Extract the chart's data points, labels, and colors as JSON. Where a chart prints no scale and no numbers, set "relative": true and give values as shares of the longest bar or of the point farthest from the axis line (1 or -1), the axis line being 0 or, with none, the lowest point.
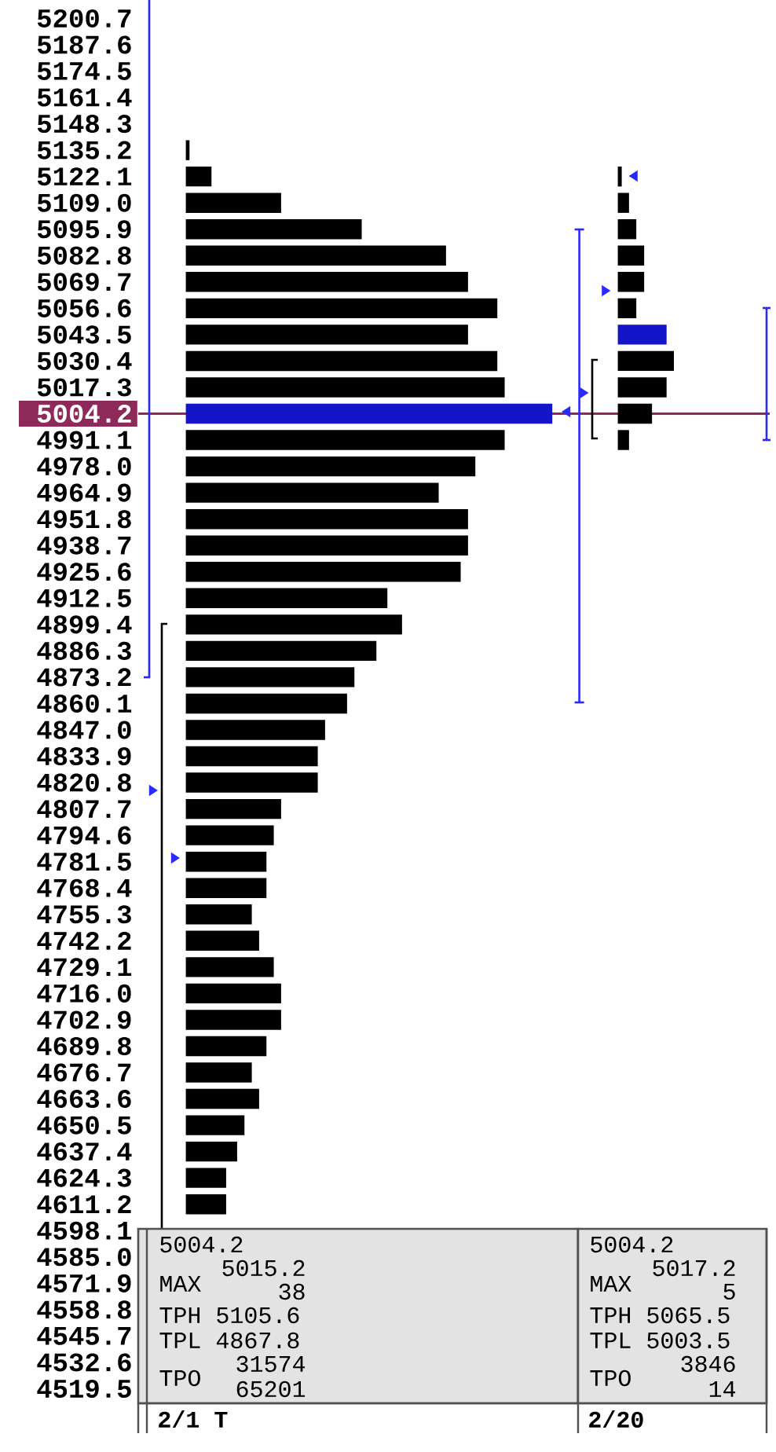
{
  "chart_data": [
    {
      "type": "bar",
      "orientation": "horizontal",
      "relative": true,
      "xlabel": "2/1 T",
      "categories": [
        "5200.7",
        "5187.6",
        "5174.5",
        "5161.4",
        "5148.3",
        "5135.2",
        "5122.1",
        "5109.0",
        "5095.9",
        "5082.8",
        "5069.7",
        "5056.6",
        "5043.5",
        "5030.4",
        "5017.3",
        "5004.2",
        "4991.1",
        "4978.0",
        "4964.9",
        "4951.8",
        "4938.7",
        "4925.6",
        "4912.5",
        "4899.4",
        "4886.3",
        "4873.2",
        "4860.1",
        "4847.0",
        "4833.9",
        "4820.8",
        "4807.7",
        "4794.6",
        "4781.5",
        "4768.4",
        "4755.3",
        "4742.2",
        "4729.1",
        "4716.0",
        "4702.9",
        "4689.8",
        "4676.7",
        "4663.6",
        "4650.5",
        "4637.4",
        "4624.3",
        "4611.2",
        "4598.1",
        "4585.0",
        "4571.9",
        "4558.8",
        "4545.7",
        "4532.6",
        "4519.5"
      ],
      "values": [
        null,
        null,
        null,
        null,
        null,
        0.01,
        0.07,
        0.26,
        0.48,
        0.71,
        0.77,
        0.85,
        0.77,
        0.85,
        0.87,
        1,
        0.87,
        0.79,
        0.69,
        0.77,
        0.77,
        0.75,
        0.55,
        0.59,
        0.52,
        0.46,
        0.44,
        0.38,
        0.36,
        0.36,
        0.26,
        0.24,
        0.22,
        0.22,
        0.18,
        0.2,
        0.24,
        0.26,
        0.26,
        0.22,
        0.18,
        0.2,
        0.16,
        0.14,
        0.11,
        0.11,
        null,
        null,
        null,
        null,
        null,
        null,
        null
      ],
      "colors": [
        null,
        null,
        null,
        null,
        null,
        "#000000",
        "#000000",
        "#000000",
        "#000000",
        "#000000",
        "#000000",
        "#000000",
        "#000000",
        "#000000",
        "#000000",
        "#1414c8",
        "#000000",
        "#000000",
        "#000000",
        "#000000",
        "#000000",
        "#000000",
        "#000000",
        "#000000",
        "#000000",
        "#000000",
        "#000000",
        "#000000",
        "#000000",
        "#000000",
        "#000000",
        "#000000",
        "#000000",
        "#000000",
        "#000000",
        "#000000",
        "#000000",
        "#000000",
        "#000000",
        "#000000",
        "#000000",
        "#000000",
        "#000000",
        "#000000",
        "#000000",
        "#000000",
        null,
        null,
        null,
        null,
        null,
        null,
        null
      ],
      "ref_lines": [
        {
          "axis": "y",
          "value": "5004.2",
          "color": "#8e2a5a"
        }
      ],
      "annotations": [
        "5004.2",
        "MAX",
        "5015.2",
        "38",
        "TPH 5105.6",
        "TPL 4867.8",
        "TPO",
        "31574",
        "65201"
      ]
    },
    {
      "type": "bar",
      "orientation": "horizontal",
      "relative": true,
      "xlabel": "2/20",
      "tick_labels": false,
      "categories": [
        "5200.7",
        "5187.6",
        "5174.5",
        "5161.4",
        "5148.3",
        "5135.2",
        "5122.1",
        "5109.0",
        "5095.9",
        "5082.8",
        "5069.7",
        "5056.6",
        "5043.5",
        "5030.4",
        "5017.3",
        "5004.2",
        "4991.1",
        "4978.0",
        "4964.9",
        "4951.8",
        "4938.7",
        "4925.6",
        "4912.5",
        "4899.4",
        "4886.3",
        "4873.2",
        "4860.1",
        "4847.0",
        "4833.9",
        "4820.8",
        "4807.7",
        "4794.6",
        "4781.5",
        "4768.4",
        "4755.3",
        "4742.2",
        "4729.1",
        "4716.0",
        "4702.9",
        "4689.8",
        "4676.7",
        "4663.6",
        "4650.5",
        "4637.4",
        "4624.3",
        "4611.2",
        "4598.1",
        "4585.0",
        "4571.9",
        "4558.8",
        "4545.7",
        "4532.6",
        "4519.5"
      ],
      "values": [
        null,
        null,
        null,
        null,
        null,
        null,
        0.07,
        0.2,
        0.33,
        0.47,
        0.47,
        0.33,
        0.87,
        1,
        0.87,
        0.61,
        0.2,
        null,
        null,
        null,
        null,
        null,
        null,
        null,
        null,
        null,
        null,
        null,
        null,
        null,
        null,
        null,
        null,
        null,
        null,
        null,
        null,
        null,
        null,
        null,
        null,
        null,
        null,
        null,
        null,
        null,
        null,
        null,
        null,
        null,
        null,
        null,
        null
      ],
      "colors": [
        null,
        null,
        null,
        null,
        null,
        null,
        "#000000",
        "#000000",
        "#000000",
        "#000000",
        "#000000",
        "#000000",
        "#1414c8",
        "#000000",
        "#000000",
        "#000000",
        "#000000",
        null,
        null,
        null,
        null,
        null,
        null,
        null,
        null,
        null,
        null,
        null,
        null,
        null,
        null,
        null,
        null,
        null,
        null,
        null,
        null,
        null,
        null,
        null,
        null,
        null,
        null,
        null,
        null,
        null,
        null,
        null,
        null,
        null,
        null,
        null,
        null
      ],
      "ref_lines": [
        {
          "axis": "y",
          "value": "5004.2",
          "color": "#8e2a5a"
        }
      ],
      "annotations": [
        "5004.2",
        "MAX",
        "5017.2",
        "5",
        "TPH 5065.5",
        "TPL 5003.5",
        "TPO",
        "3846",
        "14"
      ]
    }
  ]
}
